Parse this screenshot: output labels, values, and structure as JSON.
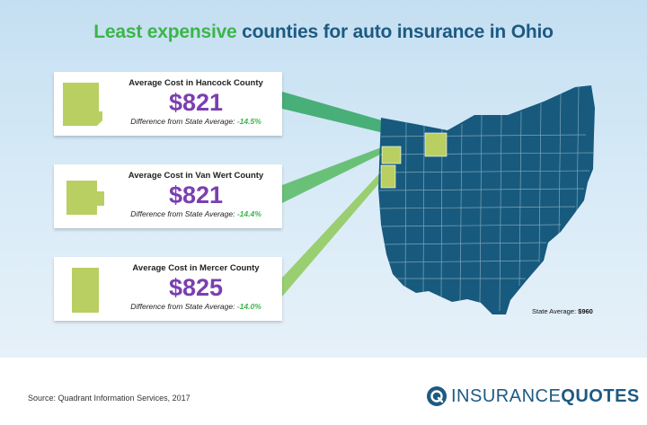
{
  "title": {
    "highlight": "Least expensive",
    "rest": " counties for auto insurance in Ohio"
  },
  "cards": [
    {
      "label": "Average Cost in Hancock County",
      "price": "$821",
      "diff_label": "Difference from State Average: ",
      "diff_value": "-14.5%"
    },
    {
      "label": "Average Cost in Van Wert County",
      "price": "$821",
      "diff_label": "Difference from State Average: ",
      "diff_value": "-14.4%"
    },
    {
      "label": "Average Cost in Mercer County",
      "price": "$825",
      "diff_label": "Difference from State Average: ",
      "diff_value": "-14.0%"
    }
  ],
  "state_average": {
    "label": "State Average: ",
    "value": "$960"
  },
  "source": "Source: Quadrant Information Services, 2017",
  "logo": {
    "part1": "INSURANCE",
    "part2": "QUOTES"
  },
  "colors": {
    "title_green": "#3cb54a",
    "title_blue": "#1d5a82",
    "price_purple": "#7b3fb0",
    "map_fill": "#175a7e",
    "county_highlight": "#b9cf62"
  }
}
